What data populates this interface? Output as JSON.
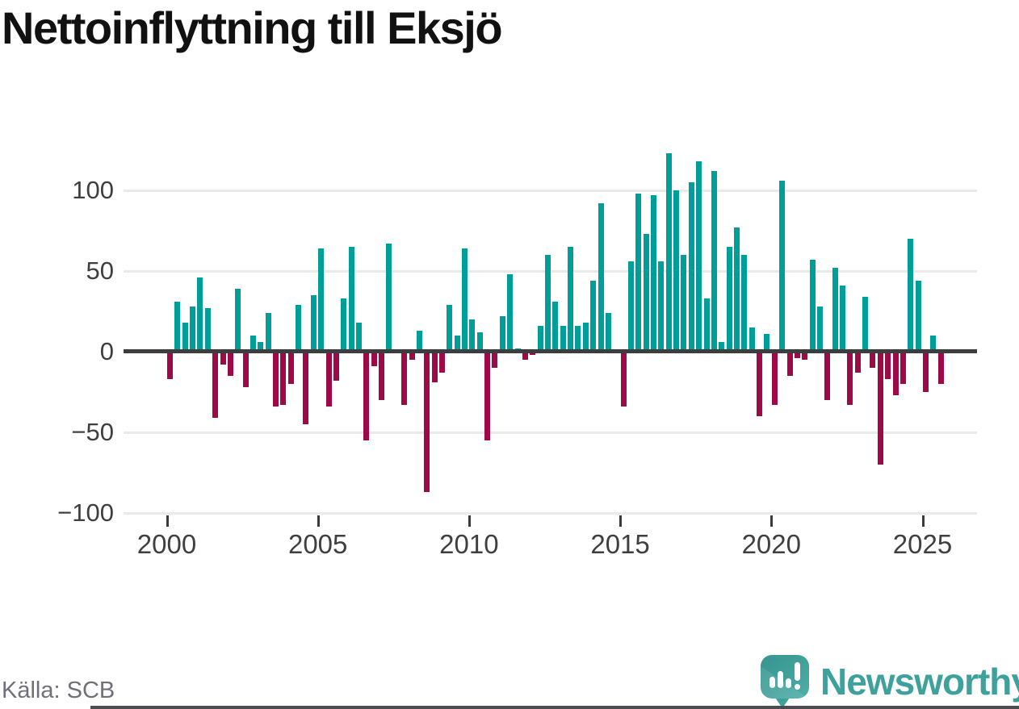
{
  "header": {
    "title": "Nettoinflyttning till Eksjö"
  },
  "footer": {
    "source_label": "Källa: SCB",
    "brand": "Newsworthy"
  },
  "icons": [
    {
      "name": "newsworthy-bubble-chart-icon",
      "description": "teal speech bubble containing white mini bar chart and exclamation mark"
    }
  ],
  "colors": {
    "background": "#FFFFFF",
    "positive_bar": "#009E98",
    "negative_bar": "#9D0A45",
    "zero_line": "#3D3D3D",
    "gridline": "#E9E9E9",
    "tick": "#3A3A3A",
    "axis_text": "#3F3F3F",
    "title_text": "#111111",
    "source_text": "#70707A",
    "brand_teal": "#3FA19B"
  },
  "chart_data": {
    "type": "bar",
    "title": "Nettoinflyttning till Eksjö",
    "xlabel": "",
    "ylabel": "",
    "x_unit": "quarter",
    "start_year": 2000,
    "start_quarter": 1,
    "end_year": 2025,
    "end_quarter": 3,
    "grid": true,
    "legend": "none",
    "ylim": [
      -100,
      130
    ],
    "y_ticks": [
      100,
      50,
      0,
      -50,
      -100
    ],
    "y_tick_labels": [
      "100",
      "50",
      "0",
      "−50",
      "−100"
    ],
    "x_tick_years": [
      2000,
      2005,
      2010,
      2015,
      2020,
      2025
    ],
    "x_tick_labels": [
      "2000",
      "2005",
      "2010",
      "2015",
      "2020",
      "2025"
    ],
    "values": [
      -17,
      31,
      18,
      28,
      46,
      27,
      -41,
      -8,
      -15,
      39,
      -22,
      10,
      6,
      24,
      -34,
      -33,
      -20,
      29,
      -45,
      35,
      64,
      -34,
      -18,
      33,
      65,
      18,
      -55,
      -9,
      -30,
      67,
      0,
      -33,
      -5,
      13,
      -87,
      -19,
      -13,
      29,
      10,
      64,
      20,
      12,
      -55,
      -10,
      22,
      48,
      2,
      -5,
      -2,
      16,
      60,
      31,
      16,
      65,
      16,
      18,
      44,
      92,
      24,
      0,
      -34,
      56,
      98,
      73,
      97,
      56,
      123,
      100,
      60,
      105,
      118,
      33,
      112,
      6,
      65,
      77,
      60,
      15,
      -40,
      11,
      -33,
      106,
      -15,
      -4,
      -5,
      57,
      28,
      -30,
      52,
      41,
      -33,
      -13,
      34,
      -10,
      -70,
      -17,
      -27,
      -20,
      70,
      44,
      -25,
      10,
      -20
    ]
  }
}
